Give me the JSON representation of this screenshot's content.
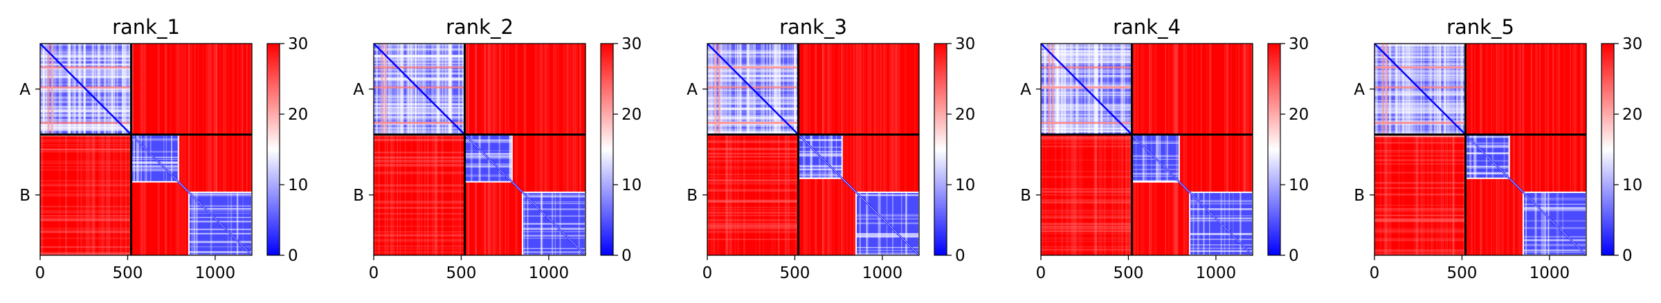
{
  "chart_data": {
    "type": "heatmap",
    "description_colormap": "bwr",
    "colors": {
      "low": "#0000ff",
      "mid": "#ffffff",
      "high": "#ff0000",
      "divider": "#000000"
    },
    "value_range": [
      0,
      30
    ],
    "colorbar_ticks": [
      "0",
      "10",
      "20",
      "30"
    ],
    "x_ticks": [
      "0",
      "500",
      "1000"
    ],
    "x_range": [
      0,
      1210
    ],
    "chain_boundary": 520,
    "chains": [
      "A",
      "B"
    ],
    "panels": [
      {
        "title": "rank_1",
        "b_domains": [
          [
            520,
            790
          ],
          [
            850,
            1210
          ]
        ]
      },
      {
        "title": "rank_2",
        "b_domains": [
          [
            520,
            790
          ],
          [
            850,
            1210
          ]
        ]
      },
      {
        "title": "rank_3",
        "b_domains": [
          [
            520,
            770
          ],
          [
            850,
            1210
          ]
        ]
      },
      {
        "title": "rank_4",
        "b_domains": [
          [
            520,
            790
          ],
          [
            850,
            1210
          ]
        ]
      },
      {
        "title": "rank_5",
        "b_domains": [
          [
            520,
            770
          ],
          [
            850,
            1210
          ]
        ]
      }
    ]
  }
}
